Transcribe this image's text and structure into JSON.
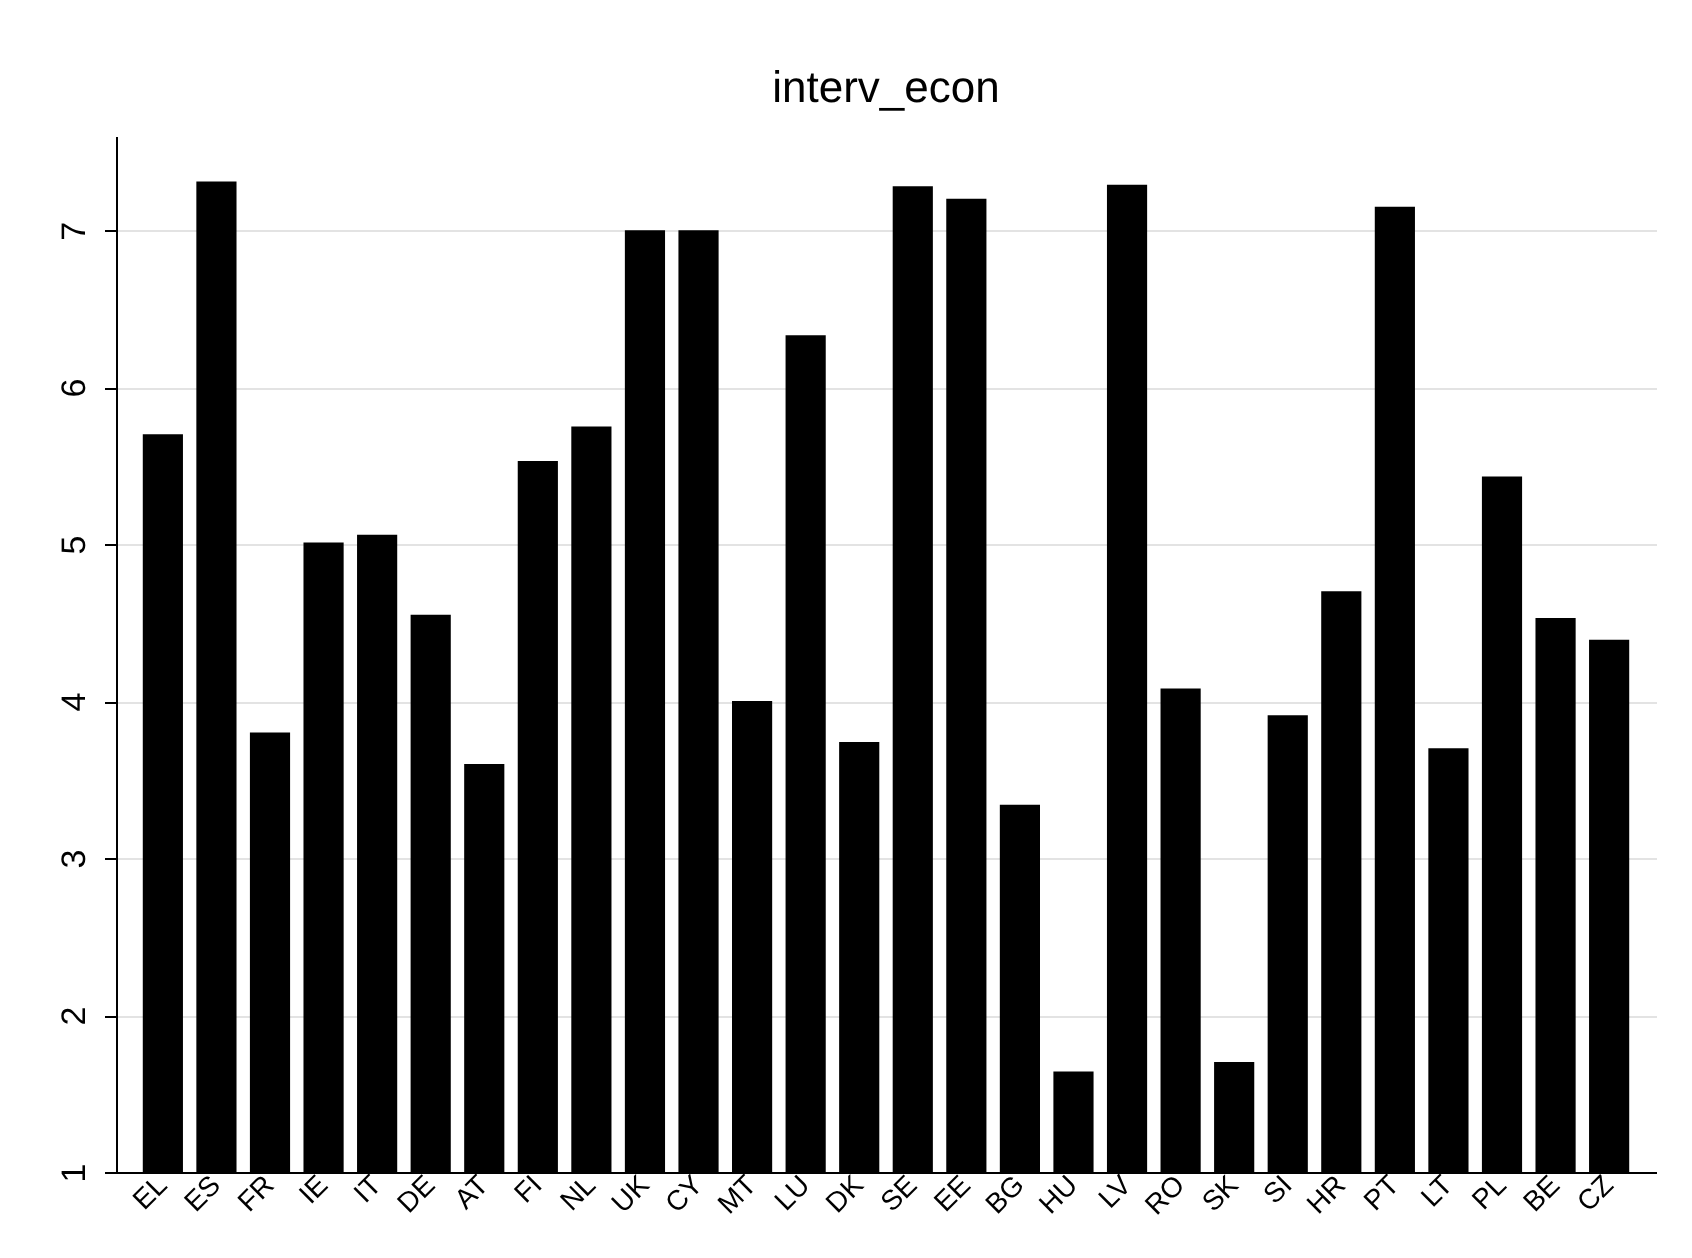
{
  "chart_data": {
    "type": "bar",
    "title": "interv_econ",
    "categories": [
      "EL",
      "ES",
      "FR",
      "IE",
      "IT",
      "DE",
      "AT",
      "FI",
      "NL",
      "UK",
      "CY",
      "MT",
      "LU",
      "DK",
      "SE",
      "EE",
      "BG",
      "HU",
      "LV",
      "RO",
      "SK",
      "SI",
      "HR",
      "PT",
      "LT",
      "PL",
      "BE",
      "CZ"
    ],
    "values": [
      5.7,
      7.31,
      3.8,
      5.01,
      5.06,
      4.55,
      3.6,
      5.53,
      5.75,
      7.0,
      7.0,
      4.0,
      6.33,
      3.74,
      7.28,
      7.2,
      3.34,
      1.64,
      7.29,
      4.08,
      1.7,
      3.91,
      4.7,
      7.15,
      3.7,
      5.43,
      4.53,
      4.39
    ],
    "color": "#000000",
    "ylim": [
      1,
      7.6
    ],
    "yticks": [
      1,
      2,
      3,
      4,
      5,
      6,
      7
    ],
    "grid": "y"
  }
}
